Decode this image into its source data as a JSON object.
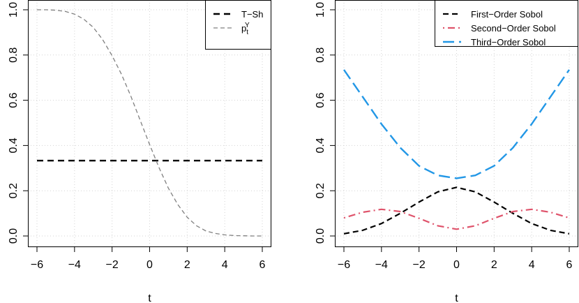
{
  "chart_data": [
    {
      "type": "line",
      "xlabel": "t",
      "ylabel": "",
      "xlim": [
        -6,
        6
      ],
      "ylim": [
        0,
        1
      ],
      "xticks": [
        "−6",
        "−4",
        "−2",
        "0",
        "2",
        "4",
        "6"
      ],
      "yticks": [
        "0.0",
        "0.2",
        "0.4",
        "0.6",
        "0.8",
        "1.0"
      ],
      "grid": true,
      "legend_position": "top-right",
      "series": [
        {
          "name": "T−Sh",
          "color": "#000000",
          "style": "dashed-thick",
          "x": [
            -6,
            -5,
            -4,
            -3,
            -2,
            -1,
            0,
            1,
            2,
            3,
            4,
            5,
            6
          ],
          "y": [
            0.333,
            0.333,
            0.333,
            0.333,
            0.333,
            0.333,
            0.333,
            0.333,
            0.333,
            0.333,
            0.333,
            0.333,
            0.333
          ]
        },
        {
          "name": "p",
          "name_sub": "t",
          "name_sup": "Y",
          "color": "#808080",
          "style": "dashed-thin",
          "x": [
            -6,
            -5.5,
            -5,
            -4.5,
            -4,
            -3.5,
            -3,
            -2.5,
            -2,
            -1.5,
            -1,
            -0.5,
            0,
            0.5,
            1,
            1.5,
            2,
            2.5,
            3,
            3.5,
            4,
            4.5,
            5,
            5.5,
            6
          ],
          "y": [
            1.0,
            1.0,
            0.998,
            0.993,
            0.981,
            0.958,
            0.922,
            0.868,
            0.797,
            0.715,
            0.618,
            0.511,
            0.404,
            0.302,
            0.211,
            0.139,
            0.083,
            0.045,
            0.022,
            0.011,
            0.005,
            0.002,
            0.001,
            0.0,
            0.0
          ]
        }
      ]
    },
    {
      "type": "line",
      "xlabel": "t",
      "ylabel": "",
      "xlim": [
        -6,
        6
      ],
      "ylim": [
        0,
        1
      ],
      "xticks": [
        "−6",
        "−4",
        "−2",
        "0",
        "2",
        "4",
        "6"
      ],
      "yticks": [
        "0.0",
        "0.2",
        "0.4",
        "0.6",
        "0.8",
        "1.0"
      ],
      "grid": true,
      "legend_position": "top-right",
      "series": [
        {
          "name": "First−Order Sobol",
          "color": "#000000",
          "style": "dashed",
          "x": [
            -6,
            -5,
            -4,
            -3,
            -2,
            -1,
            0,
            1,
            2,
            3,
            4,
            5,
            6
          ],
          "y": [
            0.01,
            0.025,
            0.055,
            0.1,
            0.15,
            0.195,
            0.215,
            0.195,
            0.15,
            0.1,
            0.055,
            0.025,
            0.01
          ]
        },
        {
          "name": "Second−Order Sobol",
          "color": "#DF536B",
          "style": "dashdot",
          "x": [
            -6,
            -5,
            -4,
            -3,
            -2,
            -1,
            0,
            1,
            2,
            3,
            4,
            5,
            6
          ],
          "y": [
            0.08,
            0.105,
            0.118,
            0.108,
            0.078,
            0.045,
            0.03,
            0.045,
            0.078,
            0.108,
            0.118,
            0.105,
            0.08
          ]
        },
        {
          "name": "Third−Order Sobol",
          "color": "#2297E6",
          "style": "longdash",
          "x": [
            -6,
            -5,
            -4,
            -3,
            -2,
            -1,
            0,
            1,
            2,
            3,
            4,
            5,
            6
          ],
          "y": [
            0.735,
            0.615,
            0.495,
            0.39,
            0.31,
            0.268,
            0.255,
            0.268,
            0.31,
            0.39,
            0.495,
            0.615,
            0.735
          ]
        }
      ]
    }
  ]
}
